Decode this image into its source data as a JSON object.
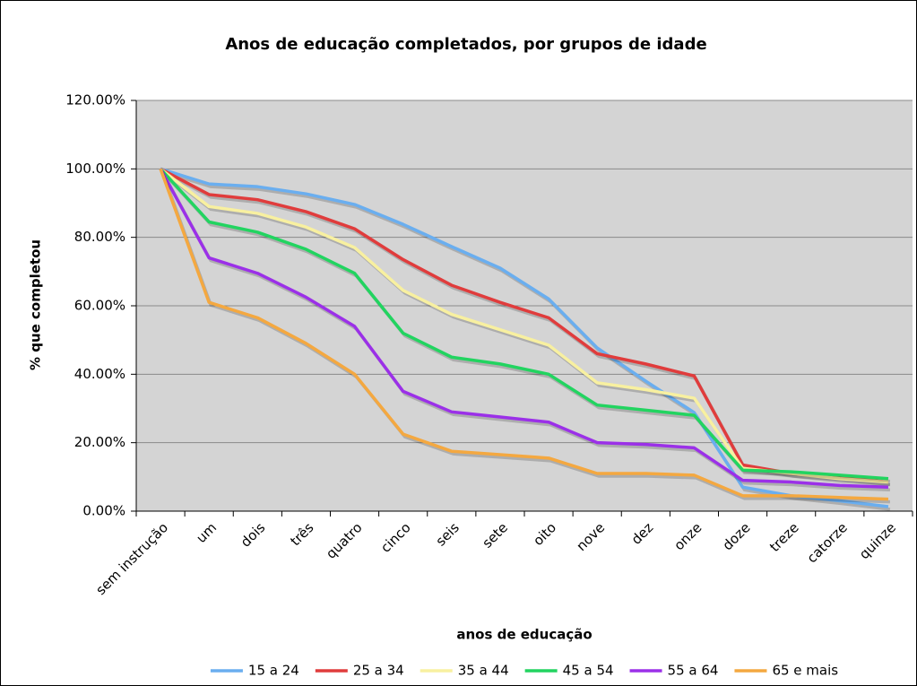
{
  "chart_data": {
    "type": "line",
    "title": "Anos de educação completados, por grupos de idade",
    "x_label": "anos de educação",
    "y_label": "% que completou",
    "categories": [
      "sem instrução",
      "um",
      "dois",
      "três",
      "quatro",
      "cinco",
      "seis",
      "sete",
      "oito",
      "nove",
      "dez",
      "onze",
      "doze",
      "treze",
      "catorze",
      "quinze"
    ],
    "ylim": [
      0,
      120
    ],
    "yticks": [
      {
        "value": 0,
        "label": "0.00%"
      },
      {
        "value": 20,
        "label": "20.00%"
      },
      {
        "value": 40,
        "label": "40.00%"
      },
      {
        "value": 60,
        "label": "60.00%"
      },
      {
        "value": 80,
        "label": "80.00%"
      },
      {
        "value": 100,
        "label": "100.00%"
      },
      {
        "value": 120,
        "label": "120.00%"
      }
    ],
    "grid": true,
    "legend": "bottom",
    "series": [
      {
        "name": "15 a 24",
        "color": "#6aaeef",
        "values": [
          100,
          95.6,
          94.8,
          92.7,
          89.6,
          83.8,
          77.3,
          71,
          62,
          47.7,
          38,
          28.8,
          7,
          4.5,
          3,
          1.3
        ]
      },
      {
        "name": "25 a 34",
        "color": "#e03c3c",
        "values": [
          100,
          92.5,
          91,
          87.5,
          82.5,
          73.5,
          66,
          61,
          56.5,
          46,
          43,
          39.5,
          13.5,
          11,
          10,
          8.5
        ]
      },
      {
        "name": "35 a 44",
        "color": "#f8f0a0",
        "values": [
          100,
          89,
          87,
          83,
          77,
          64.5,
          57.5,
          53,
          48.5,
          37.5,
          35.5,
          33,
          12.5,
          11,
          9.5,
          8.5
        ]
      },
      {
        "name": "45 a 54",
        "color": "#22d460",
        "values": [
          100,
          84.5,
          81.5,
          76.5,
          69.5,
          52,
          45,
          43,
          40,
          31,
          29.5,
          28,
          12,
          11.5,
          10.5,
          9.5
        ]
      },
      {
        "name": "55 a 64",
        "color": "#9b30e8",
        "values": [
          100,
          74,
          69.5,
          62.5,
          54,
          35,
          29,
          27.5,
          26,
          20,
          19.5,
          18.5,
          9,
          8.5,
          7.5,
          7
        ]
      },
      {
        "name": "65 e mais",
        "color": "#f4a840",
        "values": [
          100,
          61,
          56.5,
          49,
          40,
          22.5,
          17.5,
          16.5,
          15.5,
          11,
          11,
          10.5,
          4.5,
          4.5,
          4,
          3.5
        ]
      }
    ]
  }
}
